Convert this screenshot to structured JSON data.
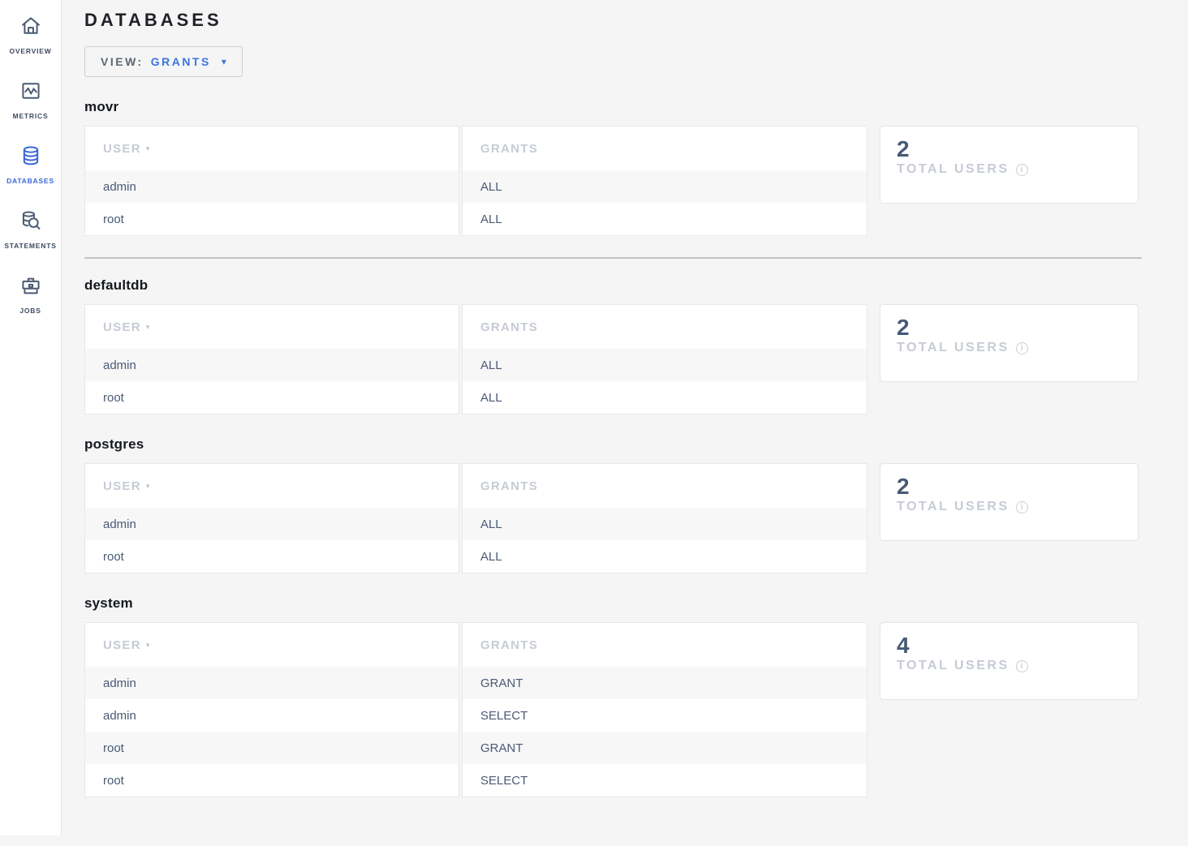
{
  "colors": {
    "accent_blue": "#3a75df",
    "sidebar_active_blue": "#3a66da",
    "cell_text": "#4a5a74",
    "muted_gray": "#c6cbd4",
    "page_background": "#f5f5f5"
  },
  "sidebar": {
    "items": [
      {
        "label": "OVERVIEW",
        "icon": "home-icon",
        "active": false
      },
      {
        "label": "METRICS",
        "icon": "metrics-icon",
        "active": false
      },
      {
        "label": "DATABASES",
        "icon": "databases-icon",
        "active": true
      },
      {
        "label": "STATEMENTS",
        "icon": "statements-icon",
        "active": false
      },
      {
        "label": "JOBS",
        "icon": "jobs-icon",
        "active": false
      }
    ]
  },
  "page": {
    "title": "DATABASES"
  },
  "view_dropdown": {
    "prefix": "VIEW:",
    "value": "GRANTS",
    "caret": "▾"
  },
  "table": {
    "user_column": "USER",
    "grants_column": "GRANTS",
    "sort_caret": "▾"
  },
  "summary": {
    "total_users_label": "TOTAL USERS",
    "info_icon_glyph": "i"
  },
  "databases": [
    {
      "name": "movr",
      "total_users": "2",
      "divider_after": true,
      "rows": [
        {
          "user": "admin",
          "grants": "ALL"
        },
        {
          "user": "root",
          "grants": "ALL"
        }
      ]
    },
    {
      "name": "defaultdb",
      "total_users": "2",
      "divider_after": false,
      "rows": [
        {
          "user": "admin",
          "grants": "ALL"
        },
        {
          "user": "root",
          "grants": "ALL"
        }
      ]
    },
    {
      "name": "postgres",
      "total_users": "2",
      "divider_after": false,
      "rows": [
        {
          "user": "admin",
          "grants": "ALL"
        },
        {
          "user": "root",
          "grants": "ALL"
        }
      ]
    },
    {
      "name": "system",
      "total_users": "4",
      "divider_after": false,
      "rows": [
        {
          "user": "admin",
          "grants": "GRANT"
        },
        {
          "user": "admin",
          "grants": "SELECT"
        },
        {
          "user": "root",
          "grants": "GRANT"
        },
        {
          "user": "root",
          "grants": "SELECT"
        }
      ]
    }
  ]
}
